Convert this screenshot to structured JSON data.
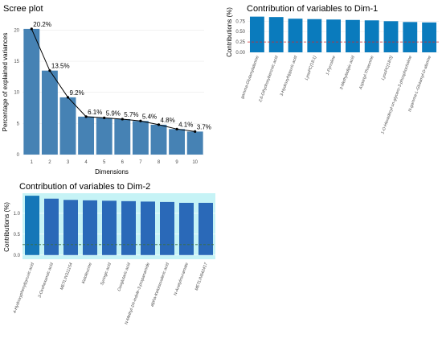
{
  "chart_data": [
    {
      "type": "bar",
      "title": "Scree plot",
      "xlabel": "Dimensions",
      "ylabel": "Percentage of explained variances",
      "categories": [
        "1",
        "2",
        "3",
        "4",
        "5",
        "6",
        "7",
        "8",
        "9",
        "10"
      ],
      "values": [
        20.2,
        13.5,
        9.2,
        6.1,
        5.9,
        5.7,
        5.4,
        4.8,
        4.1,
        3.7
      ],
      "labels": [
        "20.2%",
        "13.5%",
        "9.2%",
        "6.1%",
        "5.9%",
        "5.7%",
        "5.4%",
        "4.8%",
        "4.1%",
        "3.7%"
      ],
      "ylim": [
        0,
        22
      ],
      "yticks": [
        0,
        5,
        10,
        15,
        20
      ],
      "line_overlay": true,
      "colors": {
        "bar": "#4682b4",
        "line": "#000000",
        "grid": "#ebebeb"
      }
    },
    {
      "type": "bar",
      "title": "Contribution of variables to Dim-1",
      "xlabel": "",
      "ylabel": "Contributions (%)",
      "categories": [
        "gamma-Glutamylalanine",
        "2,6-Dihydroxybenzoic acid",
        "3-Hydroxyhippuric acid",
        "LysoPC(18:1)",
        "1-Pyrroline",
        "3-Methyladipic acid",
        "Aspartyl-Threonine",
        "LysoPC(18:0)",
        "1-O-Hexadecyl-sn-glycero-3-phosphocholine",
        "N-gamma-L-Glutamyl-D-alanine"
      ],
      "values": [
        0.86,
        0.85,
        0.81,
        0.8,
        0.79,
        0.78,
        0.77,
        0.75,
        0.73,
        0.72
      ],
      "ylim": [
        0,
        0.95
      ],
      "yticks": [
        0.0,
        0.25,
        0.5,
        0.75
      ],
      "ytick_labels": [
        "0.00",
        "0.25",
        "0.50",
        "0.75"
      ],
      "reference_line": 0.25,
      "colors": {
        "bar": "#0a7bbd",
        "reference": "#d62728",
        "grid": "#ebebeb"
      }
    },
    {
      "type": "bar",
      "title": "Contribution of variables to Dim-2",
      "xlabel": "",
      "ylabel": "Contributions (%)",
      "categories": [
        "4-Hydroxyphenylpyruvic acid",
        "3-Oxohexanoic acid",
        "METLIN311154",
        "Ketoleucine",
        "Syringic acid",
        "Oxoglutaric acid",
        "N-Methyl-1H-indole-3-propanamide",
        "alpha-Ketoisovaleric acid",
        "N-Acetylmuramate",
        "METLIN642417"
      ],
      "values": [
        1.42,
        1.35,
        1.32,
        1.31,
        1.3,
        1.29,
        1.28,
        1.27,
        1.25,
        1.25
      ],
      "ylim": [
        -0.1,
        1.48
      ],
      "yticks": [
        0.0,
        0.5,
        1.0
      ],
      "ytick_labels": [
        "0.0",
        "0.5",
        "1.0"
      ],
      "reference_line": 0.25,
      "colors": {
        "bar": "#2a69b8",
        "first_bar": "#1577b8",
        "panel": "#c6f3f6",
        "reference": "#3c6e3c",
        "grid": "#ffffff"
      }
    }
  ]
}
